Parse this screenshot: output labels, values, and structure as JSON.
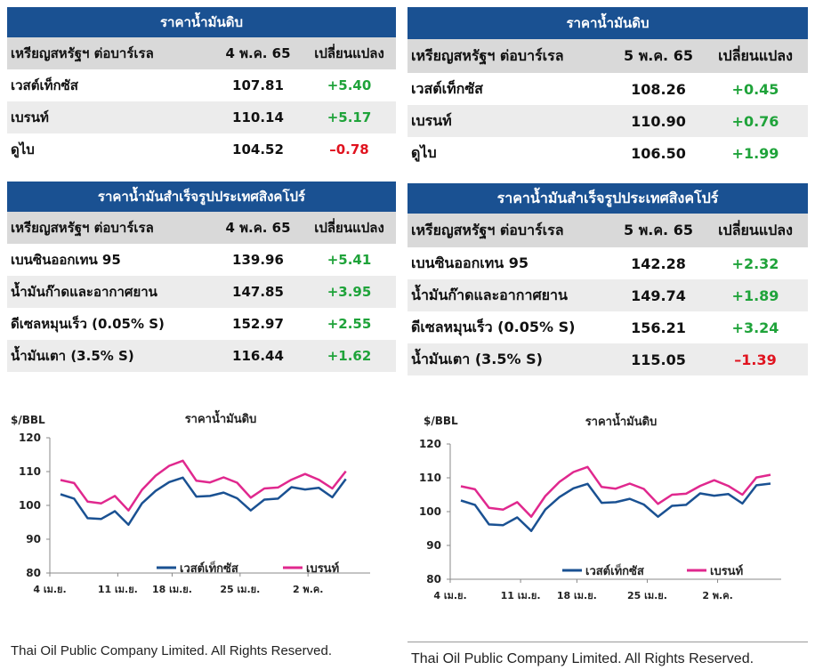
{
  "panels": [
    {
      "crude": {
        "title": "ราคาน้ำมันดิบ",
        "columns": [
          "เหรียญสหรัฐฯ ต่อบาร์เรล",
          "4 พ.ค. 65",
          "เปลี่ยนแปลง"
        ],
        "rows": [
          {
            "name": "เวสต์เท็กซัส",
            "price": "107.81",
            "change": "+5.40",
            "dir": "pos"
          },
          {
            "name": "เบรนท์",
            "price": "110.14",
            "change": "+5.17",
            "dir": "pos"
          },
          {
            "name": "ดูไบ",
            "price": "104.52",
            "change": "–0.78",
            "dir": "neg"
          }
        ]
      },
      "refined": {
        "title": "ราคาน้ำมันสำเร็จรูปประเทศสิงคโปร์",
        "columns": [
          "เหรียญสหรัฐฯ ต่อบาร์เรล",
          "4 พ.ค. 65",
          "เปลี่ยนแปลง"
        ],
        "rows": [
          {
            "name": "เบนซินออกเทน 95",
            "price": "139.96",
            "change": "+5.41",
            "dir": "pos"
          },
          {
            "name": "น้ำมันก๊าดและอากาศยาน",
            "price": "147.85",
            "change": "+3.95",
            "dir": "pos"
          },
          {
            "name": "ดีเซลหมุนเร็ว (0.05% S)",
            "price": "152.97",
            "change": "+2.55",
            "dir": "pos"
          },
          {
            "name": "น้ำมันเตา (3.5% S)",
            "price": "116.44",
            "change": "+1.62",
            "dir": "pos"
          }
        ]
      },
      "footer": "Thai Oil Public Company Limited. All Rights Reserved."
    },
    {
      "crude": {
        "title": "ราคาน้ำมันดิบ",
        "columns": [
          "เหรียญสหรัฐฯ ต่อบาร์เรล",
          "5 พ.ค. 65",
          "เปลี่ยนแปลง"
        ],
        "rows": [
          {
            "name": "เวสต์เท็กซัส",
            "price": "108.26",
            "change": "+0.45",
            "dir": "pos"
          },
          {
            "name": "เบรนท์",
            "price": "110.90",
            "change": "+0.76",
            "dir": "pos"
          },
          {
            "name": "ดูไบ",
            "price": "106.50",
            "change": "+1.99",
            "dir": "pos"
          }
        ]
      },
      "refined": {
        "title": "ราคาน้ำมันสำเร็จรูปประเทศสิงคโปร์",
        "columns": [
          "เหรียญสหรัฐฯ ต่อบาร์เรล",
          "5 พ.ค. 65",
          "เปลี่ยนแปลง"
        ],
        "rows": [
          {
            "name": "เบนซินออกเทน 95",
            "price": "142.28",
            "change": "+2.32",
            "dir": "pos"
          },
          {
            "name": "น้ำมันก๊าดและอากาศยาน",
            "price": "149.74",
            "change": "+1.89",
            "dir": "pos"
          },
          {
            "name": "ดีเซลหมุนเร็ว (0.05% S)",
            "price": "156.21",
            "change": "+3.24",
            "dir": "pos"
          },
          {
            "name": "น้ำมันเตา (3.5% S)",
            "price": "115.05",
            "change": "–1.39",
            "dir": "neg"
          }
        ]
      },
      "footer": "Thai Oil Public Company Limited. All Rights Reserved."
    }
  ],
  "colors": {
    "header": "#1a5192",
    "wti": "#1a5192",
    "brent": "#e0288e",
    "positive": "#1fa33a",
    "negative": "#e0131f"
  },
  "chart_data": [
    {
      "type": "line",
      "title": "ราคาน้ำมันดิบ",
      "ylabel": "$/BBL",
      "ylim": [
        80,
        120
      ],
      "yticks": [
        80,
        90,
        100,
        110,
        120
      ],
      "xticks": [
        "4 เม.ย.",
        "11 เม.ย.",
        "18 เม.ย.",
        "25 เม.ย.",
        "2 พ.ค."
      ],
      "x": [
        "4 เม.ย.",
        "5 เม.ย.",
        "6 เม.ย.",
        "7 เม.ย.",
        "8 เม.ย.",
        "11 เม.ย.",
        "12 เม.ย.",
        "13 เม.ย.",
        "14 เม.ย.",
        "18 เม.ย.",
        "19 เม.ย.",
        "20 เม.ย.",
        "21 เม.ย.",
        "22 เม.ย.",
        "25 เม.ย.",
        "26 เม.ย.",
        "27 เม.ย.",
        "28 เม.ย.",
        "29 เม.ย.",
        "2 พ.ค.",
        "3 พ.ค.",
        "4 พ.ค."
      ],
      "series": [
        {
          "name": "เวสต์เท็กซัส",
          "values": [
            103.3,
            102.0,
            96.2,
            96.0,
            98.3,
            94.3,
            100.6,
            104.3,
            106.9,
            108.2,
            102.6,
            102.8,
            103.8,
            102.1,
            98.5,
            101.7,
            102.0,
            105.4,
            104.7,
            105.2,
            102.4,
            107.8
          ]
        },
        {
          "name": "เบรนท์",
          "values": [
            107.5,
            106.6,
            101.1,
            100.6,
            102.8,
            98.5,
            104.6,
            108.8,
            111.7,
            113.2,
            107.3,
            106.8,
            108.3,
            106.7,
            102.3,
            105.0,
            105.3,
            107.6,
            109.3,
            107.6,
            105.0,
            110.1
          ]
        }
      ],
      "legend": "bottom"
    },
    {
      "type": "line",
      "title": "ราคาน้ำมันดิบ",
      "ylabel": "$/BBL",
      "ylim": [
        80,
        120
      ],
      "yticks": [
        80,
        90,
        100,
        110,
        120
      ],
      "xticks": [
        "4 เม.ย.",
        "11 เม.ย.",
        "18 เม.ย.",
        "25 เม.ย.",
        "2 พ.ค."
      ],
      "x": [
        "4 เม.ย.",
        "5 เม.ย.",
        "6 เม.ย.",
        "7 เม.ย.",
        "8 เม.ย.",
        "11 เม.ย.",
        "12 เม.ย.",
        "13 เม.ย.",
        "14 เม.ย.",
        "18 เม.ย.",
        "19 เม.ย.",
        "20 เม.ย.",
        "21 เม.ย.",
        "22 เม.ย.",
        "25 เม.ย.",
        "26 เม.ย.",
        "27 เม.ย.",
        "28 เม.ย.",
        "29 เม.ย.",
        "2 พ.ค.",
        "3 พ.ค.",
        "4 พ.ค.",
        "5 พ.ค."
      ],
      "series": [
        {
          "name": "เวสต์เท็กซัส",
          "values": [
            103.3,
            102.0,
            96.2,
            96.0,
            98.3,
            94.3,
            100.6,
            104.3,
            106.9,
            108.2,
            102.6,
            102.8,
            103.8,
            102.1,
            98.5,
            101.7,
            102.0,
            105.4,
            104.7,
            105.2,
            102.4,
            107.8,
            108.3
          ]
        },
        {
          "name": "เบรนท์",
          "values": [
            107.5,
            106.6,
            101.1,
            100.6,
            102.8,
            98.5,
            104.6,
            108.8,
            111.7,
            113.2,
            107.3,
            106.8,
            108.3,
            106.7,
            102.3,
            105.0,
            105.3,
            107.6,
            109.3,
            107.6,
            105.0,
            110.1,
            110.9
          ]
        }
      ],
      "legend": "bottom"
    }
  ]
}
